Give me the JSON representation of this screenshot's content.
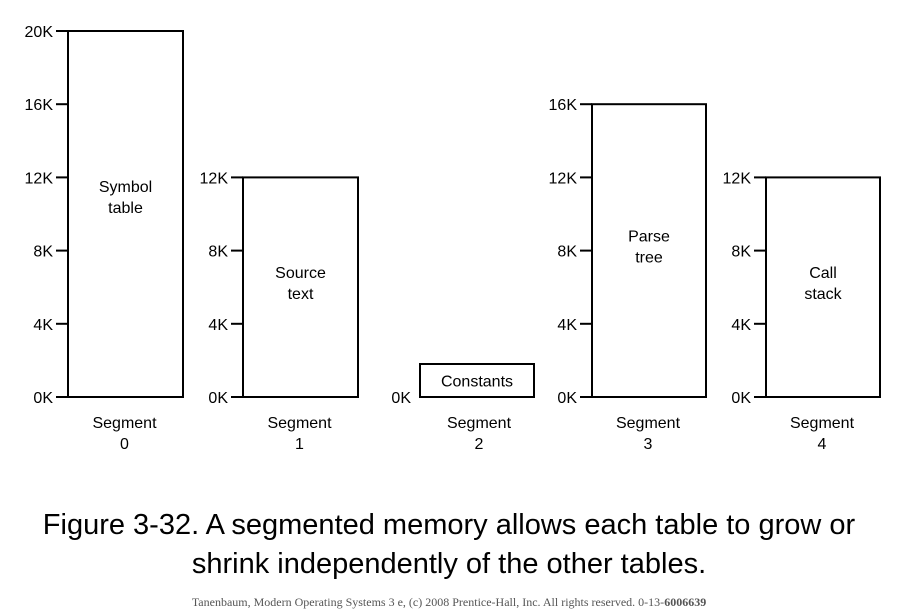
{
  "figure": {
    "segments": [
      {
        "id": "segment-0",
        "name_line1": "Segment",
        "name_line2": "0",
        "size_k": 20,
        "content_line1": "Symbol",
        "content_line2": "table",
        "ticks": [
          "0K",
          "4K",
          "8K",
          "12K",
          "16K",
          "20K"
        ]
      },
      {
        "id": "segment-1",
        "name_line1": "Segment",
        "name_line2": "1",
        "size_k": 12,
        "content_line1": "Source",
        "content_line2": "text",
        "ticks": [
          "0K",
          "4K",
          "8K",
          "12K"
        ]
      },
      {
        "id": "segment-2",
        "name_line1": "Segment",
        "name_line2": "2",
        "size_k": 2,
        "content_line1": "Constants",
        "content_line2": "",
        "ticks": [
          "0K"
        ]
      },
      {
        "id": "segment-3",
        "name_line1": "Segment",
        "name_line2": "3",
        "size_k": 16,
        "content_line1": "Parse",
        "content_line2": "tree",
        "ticks": [
          "0K",
          "4K",
          "8K",
          "12K",
          "16K"
        ]
      },
      {
        "id": "segment-4",
        "name_line1": "Segment",
        "name_line2": "4",
        "size_k": 12,
        "content_line1": "Call",
        "content_line2": "stack",
        "ticks": [
          "0K",
          "4K",
          "8K",
          "12K"
        ]
      }
    ],
    "caption_line1": "Figure 3-32. A segmented memory allows each table to grow or",
    "caption_line2": "shrink independently of the other tables.",
    "footer_text": "Tanenbaum,  Modern Operating Systems 3 e, (c) 2008 Prentice-Hall,  Inc. All rights reserved. 0-13-",
    "footer_bold": "6006639"
  }
}
